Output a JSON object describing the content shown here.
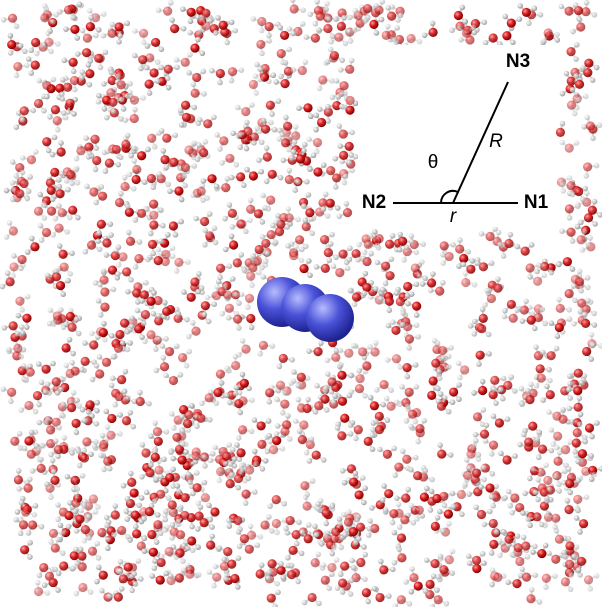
{
  "inset": {
    "labels": {
      "n3": "N3",
      "big_r": "R",
      "theta": "θ",
      "n2": "N2",
      "small_r": "r",
      "n1": "N1"
    }
  }
}
